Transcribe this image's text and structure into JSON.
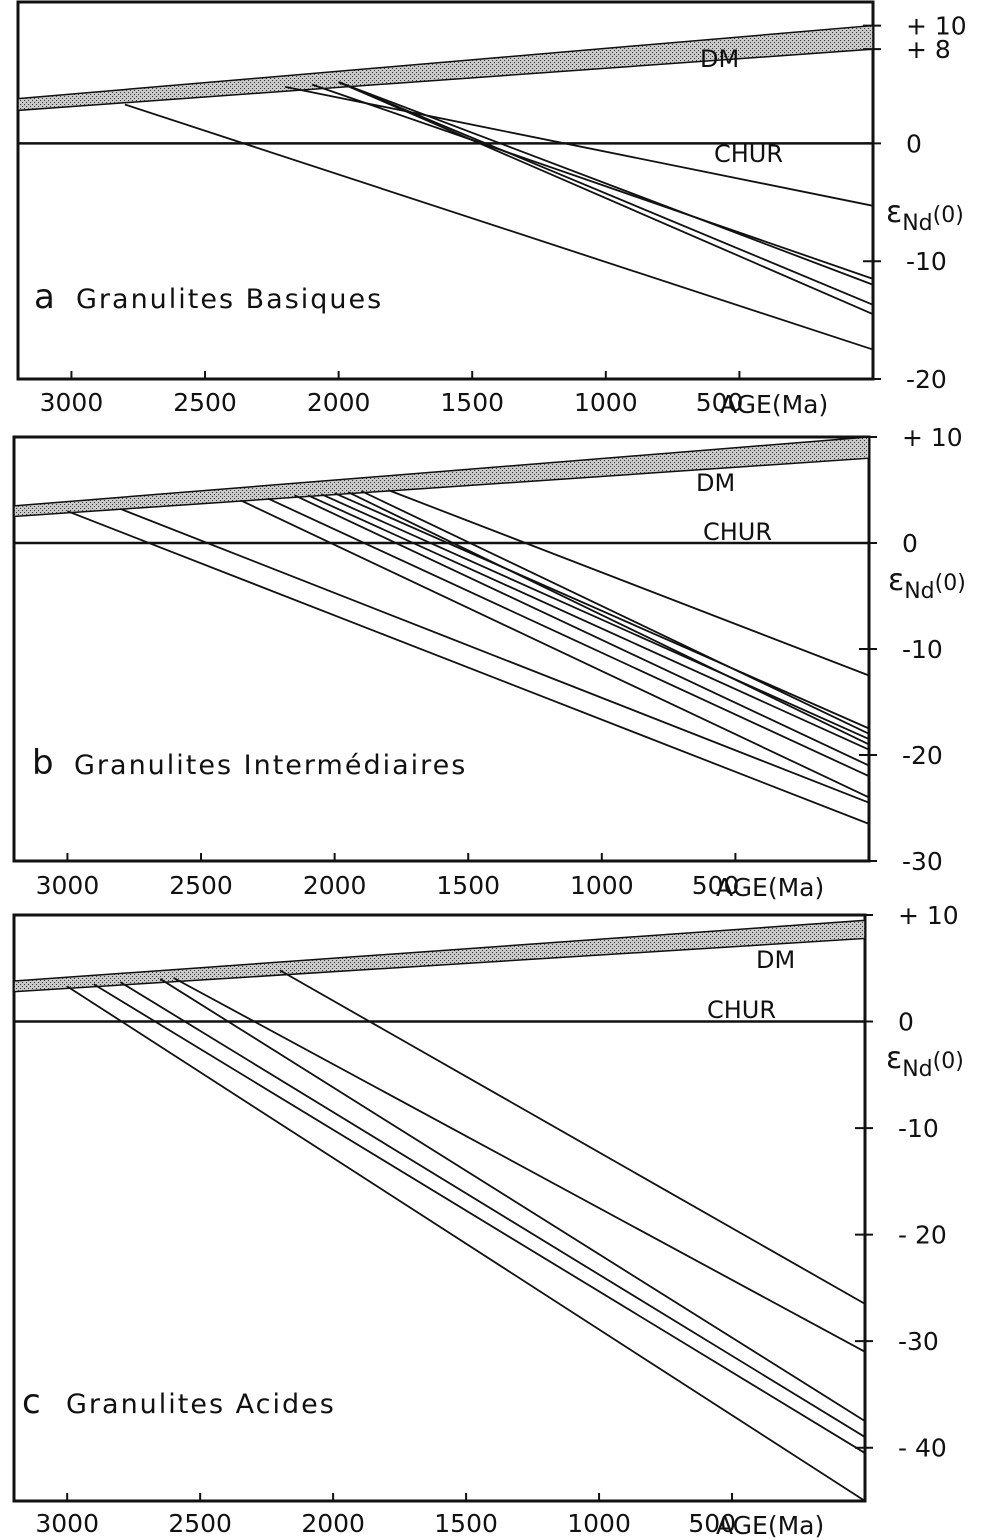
{
  "chart_data": [
    {
      "type": "line",
      "panel_letter": "a",
      "title": "Granulites Basiques",
      "xlabel": "AGE(Ma)",
      "ylabel": "εNd(0)",
      "xlim": [
        3200,
        0
      ],
      "ylim": [
        -20,
        12
      ],
      "x_ticks": [
        3000,
        2500,
        2000,
        1500,
        1000,
        500
      ],
      "y_ticks": [
        {
          "value": 10,
          "label": "+ 10"
        },
        {
          "value": 8,
          "label": "+ 8"
        },
        {
          "value": 0,
          "label": "0"
        },
        {
          "value": -10,
          "label": "-10"
        },
        {
          "value": -20,
          "label": "-20"
        }
      ],
      "dm_label": "DM",
      "chur_label": "CHUR",
      "dm_band": {
        "x": [
          3200,
          0
        ],
        "upper": [
          3.8,
          10.0
        ],
        "lower": [
          2.8,
          8.0
        ]
      },
      "chur": {
        "x": [
          3200,
          0
        ],
        "y": [
          0,
          0
        ]
      },
      "series": [
        {
          "x": [
            2800,
            0
          ],
          "y": [
            3.3,
            -17.5
          ]
        },
        {
          "x": [
            2200,
            0
          ],
          "y": [
            4.8,
            -5.3
          ]
        },
        {
          "x": [
            2100,
            0
          ],
          "y": [
            5.0,
            -11.5
          ]
        },
        {
          "x": [
            2000,
            0
          ],
          "y": [
            5.2,
            -12.0
          ]
        },
        {
          "x": [
            2000,
            0
          ],
          "y": [
            5.2,
            -13.7
          ]
        },
        {
          "x": [
            2000,
            0
          ],
          "y": [
            5.2,
            -14.5
          ]
        }
      ]
    },
    {
      "type": "line",
      "panel_letter": "b",
      "title": "Granulites Intermédiaires",
      "xlabel": "AGE(Ma)",
      "ylabel": "εNd(0)",
      "xlim": [
        3200,
        0
      ],
      "ylim": [
        -30,
        10
      ],
      "x_ticks": [
        3000,
        2500,
        2000,
        1500,
        1000,
        500
      ],
      "y_ticks": [
        {
          "value": 10,
          "label": "+ 10"
        },
        {
          "value": 0,
          "label": "0"
        },
        {
          "value": -10,
          "label": "-10"
        },
        {
          "value": -20,
          "label": "-20"
        },
        {
          "value": -30,
          "label": "-30"
        }
      ],
      "dm_label": "DM",
      "chur_label": "CHUR",
      "dm_band": {
        "x": [
          3200,
          0
        ],
        "upper": [
          3.5,
          10.0
        ],
        "lower": [
          2.5,
          8.0
        ]
      },
      "chur": {
        "x": [
          3200,
          0
        ],
        "y": [
          0,
          0
        ]
      },
      "series": [
        {
          "x": [
            3000,
            0
          ],
          "y": [
            3.0,
            -26.5
          ]
        },
        {
          "x": [
            2800,
            0
          ],
          "y": [
            3.2,
            -24.5
          ]
        },
        {
          "x": [
            2350,
            0
          ],
          "y": [
            4.0,
            -24.0
          ]
        },
        {
          "x": [
            2250,
            0
          ],
          "y": [
            4.2,
            -22.0
          ]
        },
        {
          "x": [
            2150,
            0
          ],
          "y": [
            4.5,
            -21.0
          ]
        },
        {
          "x": [
            2100,
            0
          ],
          "y": [
            4.5,
            -19.5
          ]
        },
        {
          "x": [
            2050,
            0
          ],
          "y": [
            4.6,
            -18.5
          ]
        },
        {
          "x": [
            2000,
            0
          ],
          "y": [
            4.7,
            -17.5
          ]
        },
        {
          "x": [
            1950,
            0
          ],
          "y": [
            4.8,
            -19.0
          ]
        },
        {
          "x": [
            1900,
            0
          ],
          "y": [
            4.9,
            -18.0
          ]
        },
        {
          "x": [
            1800,
            0
          ],
          "y": [
            5.0,
            -12.5
          ]
        }
      ]
    },
    {
      "type": "line",
      "panel_letter": "c",
      "title": "Granulites Acides",
      "xlabel": "AGE(Ma)",
      "ylabel": "εNd(0)",
      "xlim": [
        3200,
        0
      ],
      "ylim": [
        -45,
        10
      ],
      "x_ticks": [
        3000,
        2500,
        2000,
        1500,
        1000,
        500
      ],
      "y_ticks": [
        {
          "value": 10,
          "label": "+ 10"
        },
        {
          "value": 0,
          "label": "0"
        },
        {
          "value": -10,
          "label": "-10"
        },
        {
          "value": -20,
          "label": "- 20"
        },
        {
          "value": -30,
          "label": "-30"
        },
        {
          "value": -40,
          "label": "- 40"
        }
      ],
      "dm_label": "DM",
      "chur_label": "CHUR",
      "dm_band": {
        "x": [
          3200,
          0
        ],
        "upper": [
          3.8,
          9.5
        ],
        "lower": [
          2.8,
          7.8
        ]
      },
      "chur": {
        "x": [
          3200,
          0
        ],
        "y": [
          0,
          0
        ]
      },
      "series": [
        {
          "x": [
            3000,
            0
          ],
          "y": [
            3.3,
            -45.0
          ]
        },
        {
          "x": [
            2900,
            0
          ],
          "y": [
            3.5,
            -40.5
          ]
        },
        {
          "x": [
            2800,
            0
          ],
          "y": [
            3.7,
            -39.0
          ]
        },
        {
          "x": [
            2650,
            0
          ],
          "y": [
            4.0,
            -37.5
          ]
        },
        {
          "x": [
            2600,
            0
          ],
          "y": [
            4.1,
            -31.0
          ]
        },
        {
          "x": [
            2200,
            0
          ],
          "y": [
            4.8,
            -26.5
          ]
        }
      ]
    }
  ]
}
